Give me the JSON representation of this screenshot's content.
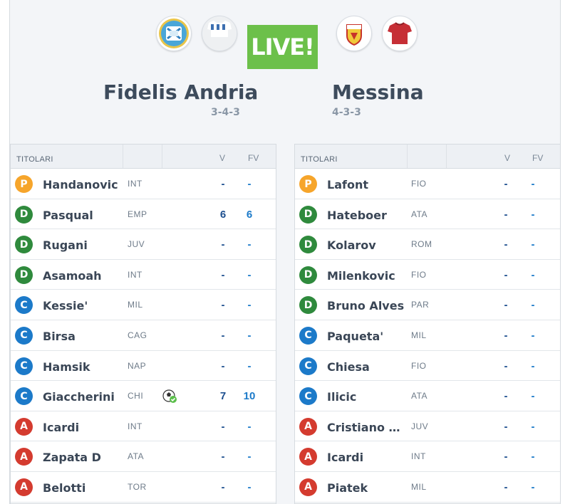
{
  "match": {
    "live_label": "LIVE!",
    "home": {
      "name": "Fidelis Andria",
      "formation": "3-4-3",
      "crest_icon": "andria-crest-icon",
      "shirt_icon": "andria-shirt-icon"
    },
    "away": {
      "name": "Messina",
      "formation": "4-3-3",
      "crest_icon": "messina-crest-icon",
      "shirt_icon": "messina-shirt-icon"
    }
  },
  "table_headers": {
    "title": "TITOLARI",
    "v": "V",
    "fv": "FV"
  },
  "colors": {
    "P": "#f6a52b",
    "D": "#2f8a3d",
    "C": "#1c7ac9",
    "A": "#d43b2f",
    "live": "#6cc04a"
  },
  "home_players": [
    {
      "role": "P",
      "name": "Handanovic",
      "club": "INT",
      "v": "-",
      "fv": "-"
    },
    {
      "role": "D",
      "name": "Pasqual",
      "club": "EMP",
      "v": "6",
      "fv": "6"
    },
    {
      "role": "D",
      "name": "Rugani",
      "club": "JUV",
      "v": "-",
      "fv": "-"
    },
    {
      "role": "D",
      "name": "Asamoah",
      "club": "INT",
      "v": "-",
      "fv": "-"
    },
    {
      "role": "C",
      "name": "Kessie'",
      "club": "MIL",
      "v": "-",
      "fv": "-"
    },
    {
      "role": "C",
      "name": "Birsa",
      "club": "CAG",
      "v": "-",
      "fv": "-"
    },
    {
      "role": "C",
      "name": "Hamsik",
      "club": "NAP",
      "v": "-",
      "fv": "-"
    },
    {
      "role": "C",
      "name": "Giaccherini",
      "club": "CHI",
      "v": "7",
      "fv": "10",
      "event_icon": "goal-ball-icon"
    },
    {
      "role": "A",
      "name": "Icardi",
      "club": "INT",
      "v": "-",
      "fv": "-"
    },
    {
      "role": "A",
      "name": "Zapata D",
      "club": "ATA",
      "v": "-",
      "fv": "-"
    },
    {
      "role": "A",
      "name": "Belotti",
      "club": "TOR",
      "v": "-",
      "fv": "-"
    }
  ],
  "away_players": [
    {
      "role": "P",
      "name": "Lafont",
      "club": "FIO",
      "v": "-",
      "fv": "-"
    },
    {
      "role": "D",
      "name": "Hateboer",
      "club": "ATA",
      "v": "-",
      "fv": "-"
    },
    {
      "role": "D",
      "name": "Kolarov",
      "club": "ROM",
      "v": "-",
      "fv": "-"
    },
    {
      "role": "D",
      "name": "Milenkovic",
      "club": "FIO",
      "v": "-",
      "fv": "-"
    },
    {
      "role": "D",
      "name": "Bruno Alves",
      "club": "PAR",
      "v": "-",
      "fv": "-"
    },
    {
      "role": "C",
      "name": "Paqueta'",
      "club": "MIL",
      "v": "-",
      "fv": "-"
    },
    {
      "role": "C",
      "name": "Chiesa",
      "club": "FIO",
      "v": "-",
      "fv": "-"
    },
    {
      "role": "C",
      "name": "Ilicic",
      "club": "ATA",
      "v": "-",
      "fv": "-"
    },
    {
      "role": "A",
      "name": "Cristiano R...",
      "club": "JUV",
      "v": "-",
      "fv": "-"
    },
    {
      "role": "A",
      "name": "Icardi",
      "club": "INT",
      "v": "-",
      "fv": "-"
    },
    {
      "role": "A",
      "name": "Piatek",
      "club": "MIL",
      "v": "-",
      "fv": "-"
    }
  ]
}
